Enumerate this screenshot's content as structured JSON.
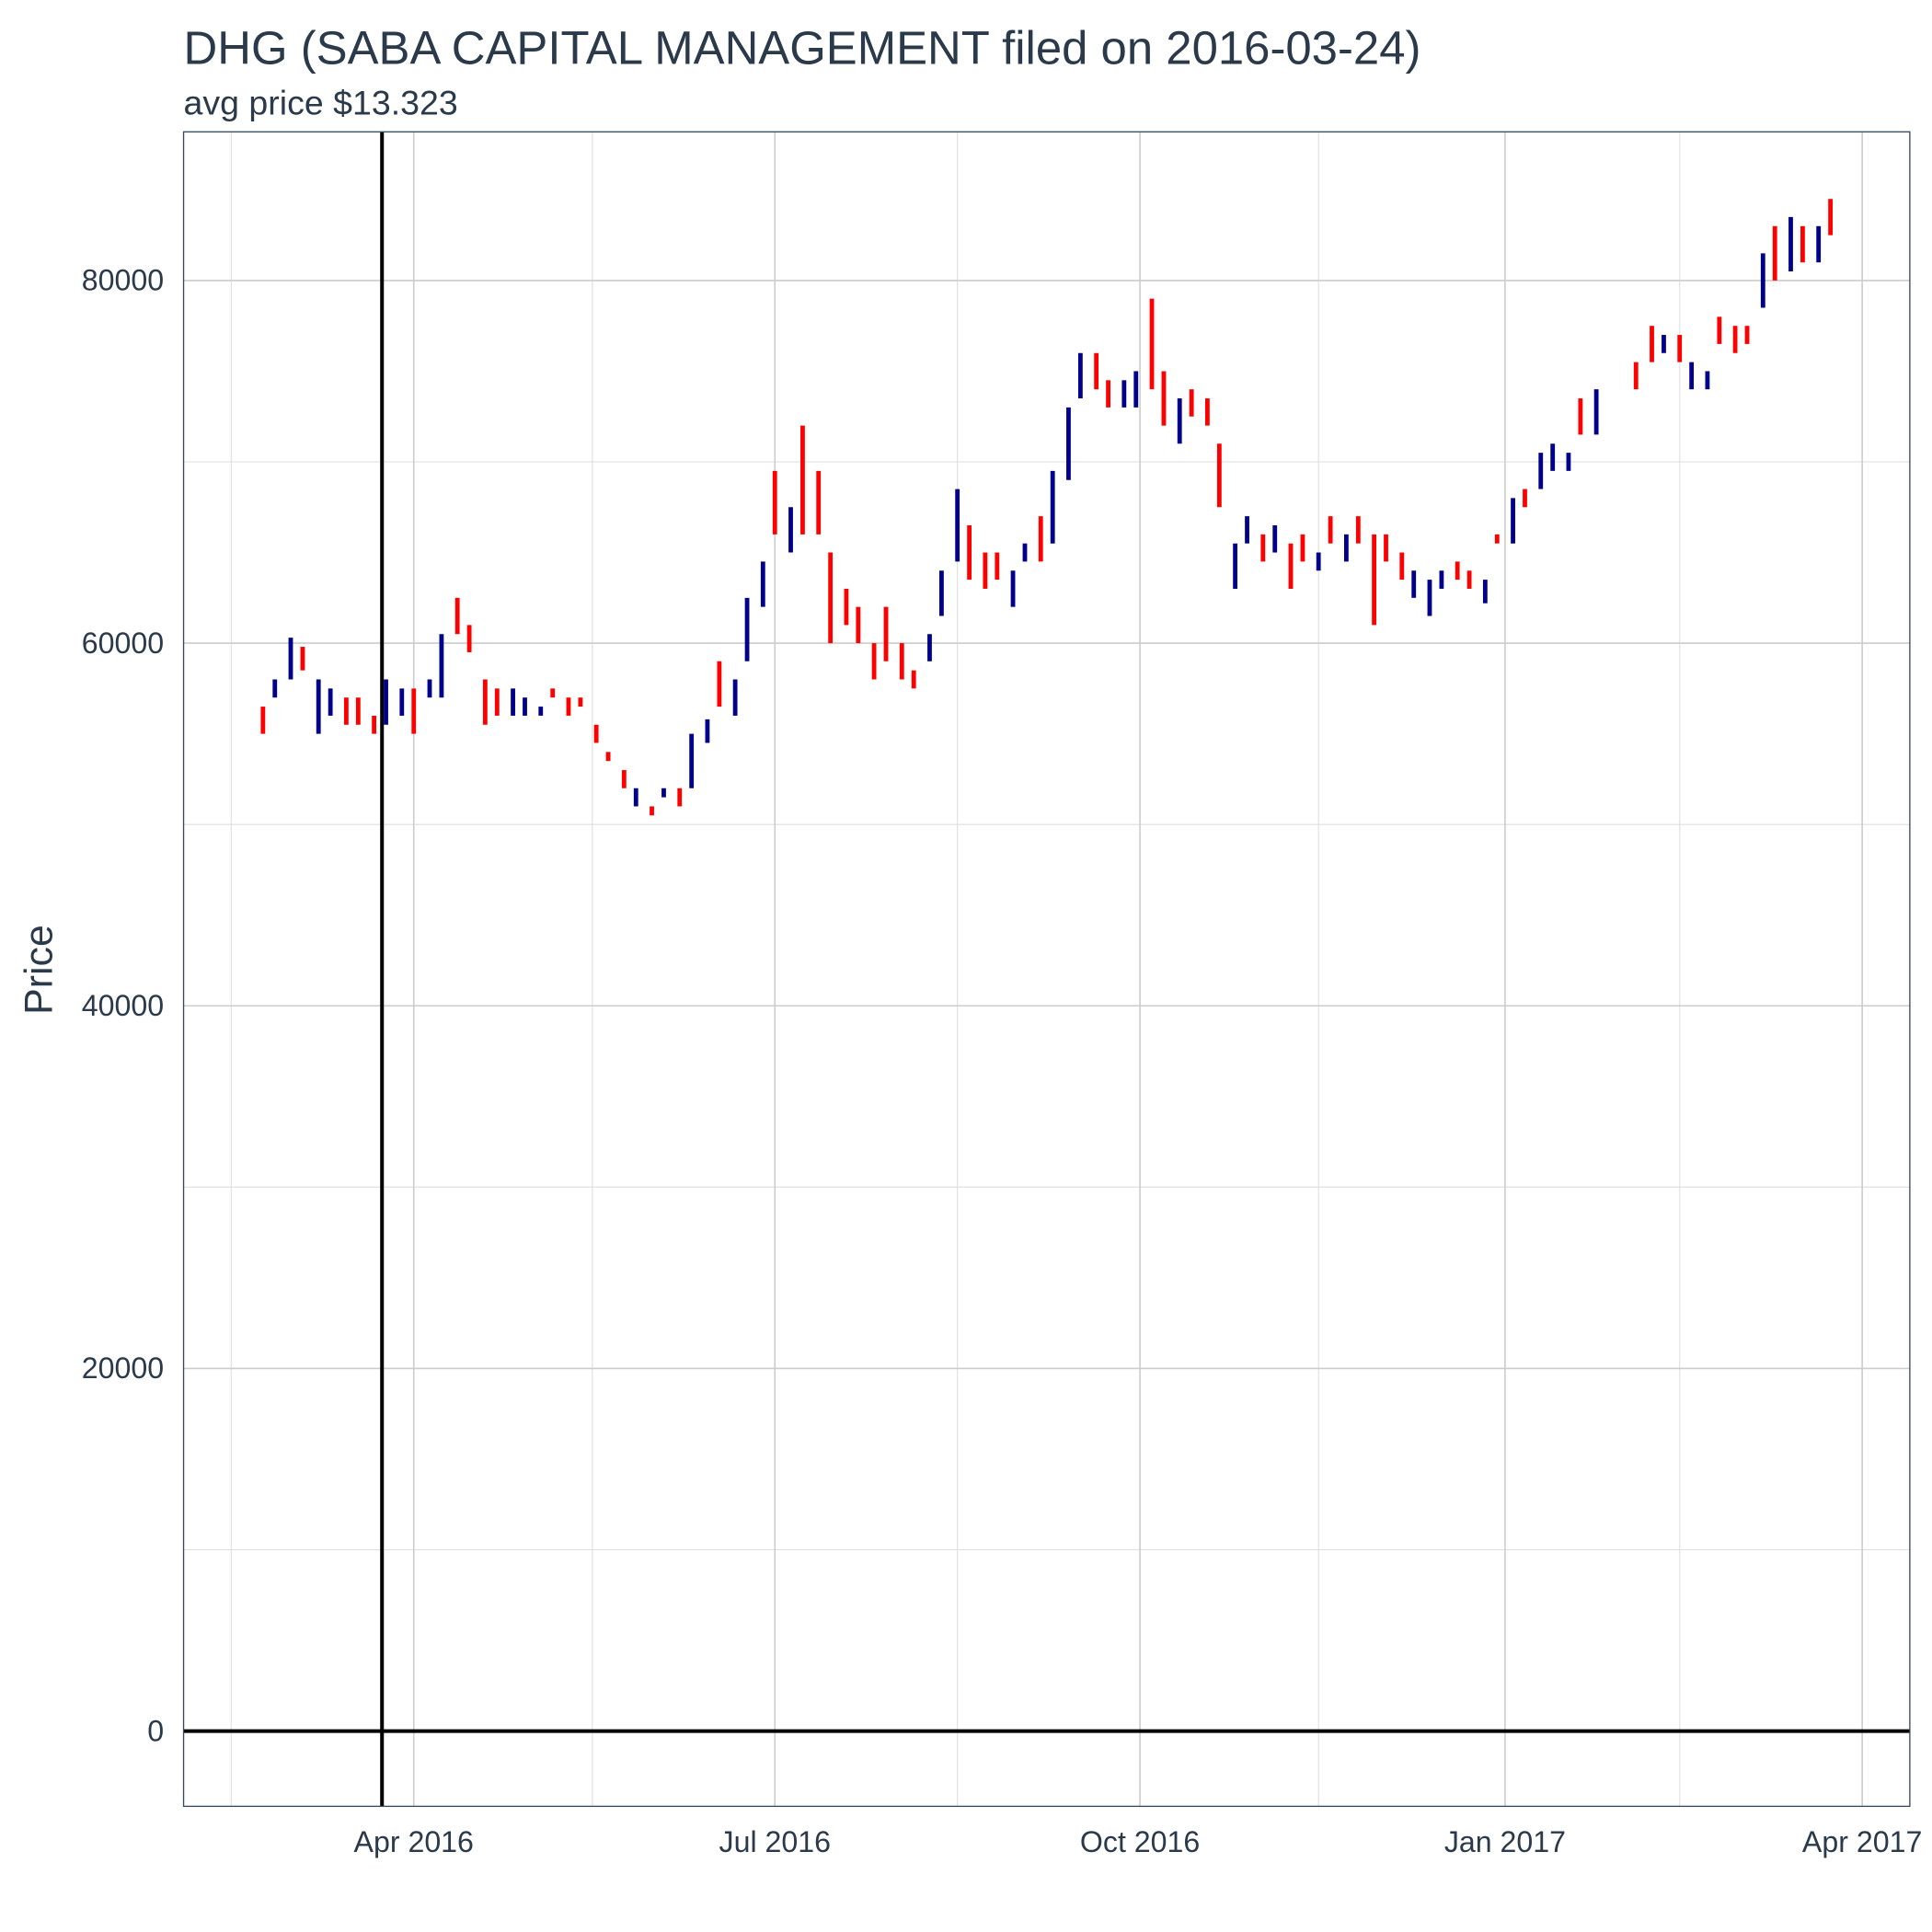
{
  "chart_data": {
    "type": "range-bar",
    "title": "DHG (SABA CAPITAL MANAGEMENT filed on 2016-03-24)",
    "subtitle": "avg price $13.323",
    "y_label": "Price",
    "up_color": "#00008b",
    "down_color": "#ff0000",
    "grid": true,
    "vline": "2016-03-24",
    "hline": 0,
    "xlim": [
      "2016-02-03",
      "2017-04-13"
    ],
    "xticks": [
      {
        "value": "2016-04-01",
        "label": "Apr 2016"
      },
      {
        "value": "2016-07-01",
        "label": "Jul 2016"
      },
      {
        "value": "2016-10-01",
        "label": "Oct 2016"
      },
      {
        "value": "2017-01-01",
        "label": "Jan 2017"
      },
      {
        "value": "2017-04-01",
        "label": "Apr 2017"
      }
    ],
    "xminorticks": [
      "2016-02-15",
      "2016-05-16",
      "2016-08-16",
      "2016-11-15",
      "2017-02-14"
    ],
    "ylim": [
      -4150,
      88200
    ],
    "yticks": [
      0,
      20000,
      40000,
      60000,
      80000
    ],
    "yminorticks": [
      10000,
      30000,
      50000,
      70000
    ],
    "x": [
      "2016-02-23",
      "2016-02-26",
      "2016-03-01",
      "2016-03-04",
      "2016-03-08",
      "2016-03-11",
      "2016-03-15",
      "2016-03-18",
      "2016-03-22",
      "2016-03-25",
      "2016-03-29",
      "2016-04-01",
      "2016-04-05",
      "2016-04-08",
      "2016-04-12",
      "2016-04-15",
      "2016-04-19",
      "2016-04-22",
      "2016-04-26",
      "2016-04-29",
      "2016-05-03",
      "2016-05-06",
      "2016-05-10",
      "2016-05-13",
      "2016-05-17",
      "2016-05-20",
      "2016-05-24",
      "2016-05-27",
      "2016-05-31",
      "2016-06-03",
      "2016-06-07",
      "2016-06-10",
      "2016-06-14",
      "2016-06-17",
      "2016-06-21",
      "2016-06-24",
      "2016-06-28",
      "2016-07-01",
      "2016-07-05",
      "2016-07-08",
      "2016-07-12",
      "2016-07-15",
      "2016-07-19",
      "2016-07-22",
      "2016-07-26",
      "2016-07-29",
      "2016-08-02",
      "2016-08-05",
      "2016-08-09",
      "2016-08-12",
      "2016-08-16",
      "2016-08-19",
      "2016-08-23",
      "2016-08-26",
      "2016-08-30",
      "2016-09-02",
      "2016-09-06",
      "2016-09-09",
      "2016-09-13",
      "2016-09-16",
      "2016-09-20",
      "2016-09-23",
      "2016-09-27",
      "2016-09-30",
      "2016-10-04",
      "2016-10-07",
      "2016-10-11",
      "2016-10-14",
      "2016-10-18",
      "2016-10-21",
      "2016-10-25",
      "2016-10-28",
      "2016-11-01",
      "2016-11-04",
      "2016-11-08",
      "2016-11-11",
      "2016-11-15",
      "2016-11-18",
      "2016-11-22",
      "2016-11-25",
      "2016-11-29",
      "2016-12-02",
      "2016-12-06",
      "2016-12-09",
      "2016-12-13",
      "2016-12-16",
      "2016-12-20",
      "2016-12-23",
      "2016-12-27",
      "2016-12-30",
      "2017-01-03",
      "2017-01-06",
      "2017-01-10",
      "2017-01-13",
      "2017-01-17",
      "2017-01-20",
      "2017-01-24",
      "2017-02-03",
      "2017-02-07",
      "2017-02-10",
      "2017-02-14",
      "2017-02-17",
      "2017-02-21",
      "2017-02-24",
      "2017-02-28",
      "2017-03-03",
      "2017-03-07",
      "2017-03-10",
      "2017-03-14",
      "2017-03-17",
      "2017-03-21",
      "2017-03-24"
    ],
    "low": [
      55000,
      57000,
      58000,
      58500,
      55000,
      56000,
      55500,
      55500,
      55000,
      55500,
      56000,
      55000,
      57000,
      57000,
      60500,
      59500,
      55500,
      56000,
      56000,
      56000,
      56000,
      57000,
      56000,
      56500,
      54500,
      53500,
      52000,
      51000,
      50500,
      51500,
      51000,
      52000,
      54500,
      56500,
      56000,
      59000,
      62000,
      66000,
      65000,
      66000,
      66000,
      60000,
      61000,
      60000,
      58000,
      59000,
      58000,
      57500,
      59000,
      61500,
      64500,
      63500,
      63000,
      63500,
      62000,
      64500,
      64500,
      65500,
      69000,
      73500,
      74000,
      73000,
      73000,
      73000,
      74000,
      72000,
      71000,
      72500,
      72000,
      67500,
      63000,
      65500,
      64500,
      65000,
      63000,
      64500,
      64000,
      65500,
      64500,
      65500,
      61000,
      64500,
      63500,
      62500,
      61500,
      63000,
      63500,
      63000,
      62200,
      65500,
      65500,
      67500,
      68500,
      69500,
      69500,
      71500,
      71500,
      74000,
      75500,
      76000,
      75500,
      74000,
      74000,
      76500,
      76000,
      76500,
      78500,
      80000,
      80500,
      81000,
      81000,
      82500
    ],
    "high": [
      56500,
      58000,
      60300,
      59800,
      58000,
      57500,
      57000,
      57000,
      56000,
      58000,
      57500,
      57500,
      58000,
      60500,
      62500,
      61000,
      58000,
      57500,
      57500,
      57000,
      56500,
      57500,
      57000,
      57000,
      55500,
      54000,
      53000,
      52000,
      51000,
      52000,
      52000,
      55000,
      55800,
      59000,
      58000,
      62500,
      64500,
      69500,
      67500,
      72000,
      69500,
      65000,
      63000,
      62000,
      60000,
      62000,
      60000,
      58500,
      60500,
      64000,
      68500,
      66500,
      65000,
      65000,
      64000,
      65500,
      67000,
      69500,
      73000,
      76000,
      76000,
      74500,
      74500,
      75000,
      79000,
      75000,
      73500,
      74000,
      73500,
      71000,
      65500,
      67000,
      66000,
      66500,
      65500,
      66000,
      65000,
      67000,
      66000,
      67000,
      66000,
      66000,
      65000,
      64000,
      63500,
      64000,
      64500,
      64000,
      63500,
      66000,
      68000,
      68500,
      70500,
      71000,
      70500,
      73500,
      74000,
      75500,
      77500,
      77000,
      77000,
      75500,
      75000,
      78000,
      77500,
      77500,
      81500,
      83000,
      83500,
      83000,
      83000,
      84500
    ],
    "up": [
      false,
      true,
      true,
      false,
      true,
      true,
      false,
      false,
      false,
      true,
      true,
      false,
      true,
      true,
      false,
      false,
      false,
      false,
      true,
      true,
      true,
      false,
      false,
      false,
      false,
      false,
      false,
      true,
      false,
      true,
      false,
      true,
      true,
      false,
      true,
      true,
      true,
      false,
      true,
      false,
      false,
      false,
      false,
      false,
      false,
      false,
      false,
      false,
      true,
      true,
      true,
      false,
      false,
      false,
      true,
      true,
      false,
      true,
      true,
      true,
      false,
      false,
      true,
      true,
      false,
      false,
      true,
      false,
      false,
      false,
      true,
      true,
      false,
      true,
      false,
      false,
      true,
      false,
      true,
      false,
      false,
      false,
      false,
      true,
      true,
      true,
      false,
      false,
      true,
      false,
      true,
      false,
      true,
      true,
      true,
      false,
      true,
      false,
      false,
      true,
      false,
      true,
      true,
      false,
      false,
      false,
      true,
      false,
      true,
      false,
      true,
      false
    ]
  }
}
